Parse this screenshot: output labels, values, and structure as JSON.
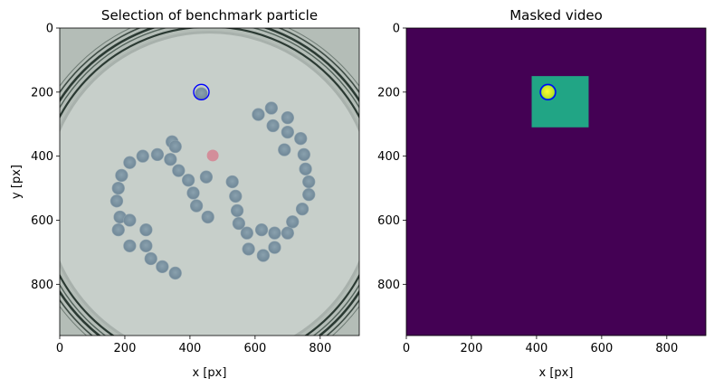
{
  "chart_data": [
    {
      "type": "image",
      "title": "Selection of benchmark particle",
      "xlabel": "x [px]",
      "ylabel": "y [px]",
      "xlim": [
        0,
        920
      ],
      "ylim": [
        960,
        0
      ],
      "xticks": [
        0,
        200,
        400,
        600,
        800
      ],
      "yticks": [
        0,
        200,
        400,
        600,
        800
      ],
      "image_colors": {
        "background": "#b4bdb7",
        "petri_rim": "#2b3a33",
        "particle": "#7f97a6",
        "red_particle": "#d38e9a"
      },
      "dish": {
        "cx": 460,
        "cy": 525,
        "r": 560
      },
      "particles": [
        [
          435,
          205
        ],
        [
          345,
          355
        ],
        [
          355,
          370
        ],
        [
          300,
          395
        ],
        [
          255,
          400
        ],
        [
          215,
          420
        ],
        [
          190,
          460
        ],
        [
          180,
          500
        ],
        [
          175,
          540
        ],
        [
          185,
          590
        ],
        [
          180,
          630
        ],
        [
          215,
          600
        ],
        [
          265,
          630
        ],
        [
          215,
          680
        ],
        [
          265,
          680
        ],
        [
          280,
          720
        ],
        [
          315,
          745
        ],
        [
          355,
          765
        ],
        [
          340,
          410
        ],
        [
          365,
          445
        ],
        [
          395,
          475
        ],
        [
          410,
          515
        ],
        [
          420,
          555
        ],
        [
          455,
          590
        ],
        [
          450,
          465
        ],
        [
          530,
          480
        ],
        [
          540,
          525
        ],
        [
          545,
          570
        ],
        [
          550,
          610
        ],
        [
          575,
          640
        ],
        [
          580,
          690
        ],
        [
          620,
          630
        ],
        [
          625,
          710
        ],
        [
          660,
          640
        ],
        [
          660,
          685
        ],
        [
          700,
          640
        ],
        [
          715,
          605
        ],
        [
          745,
          565
        ],
        [
          765,
          520
        ],
        [
          765,
          480
        ],
        [
          755,
          440
        ],
        [
          750,
          395
        ],
        [
          740,
          345
        ],
        [
          700,
          325
        ],
        [
          700,
          280
        ],
        [
          650,
          250
        ],
        [
          655,
          305
        ],
        [
          610,
          270
        ],
        [
          690,
          380
        ]
      ],
      "red_particle": [
        470,
        398
      ],
      "selection_marker": {
        "x": 435,
        "y": 200,
        "color": "#0000ff"
      }
    },
    {
      "type": "image",
      "title": "Masked video",
      "xlabel": "x [px]",
      "ylabel": "",
      "xlim": [
        0,
        920
      ],
      "ylim": [
        960,
        0
      ],
      "xticks": [
        0,
        200,
        400,
        600,
        800
      ],
      "yticks": [
        0,
        200,
        400,
        600,
        800
      ],
      "image_colors": {
        "background": "#440154",
        "mask": "#21a585",
        "particle": "#fde725",
        "particle_edge": "#b5de2b"
      },
      "mask_region": {
        "x0": 385,
        "x1": 560,
        "y0": 150,
        "y1": 310
      },
      "particle": {
        "x": 435,
        "y": 200
      },
      "selection_marker": {
        "x": 435,
        "y": 200,
        "color": "#0000ff"
      }
    }
  ]
}
